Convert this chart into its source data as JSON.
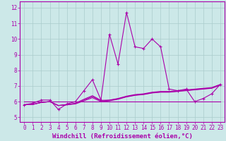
{
  "title": "",
  "xlabel": "Windchill (Refroidissement éolien,°C)",
  "bg_color": "#cce8e8",
  "grid_color": "#aacccc",
  "line_color": "#aa00aa",
  "x_ticks": [
    0,
    1,
    2,
    3,
    4,
    5,
    6,
    7,
    8,
    9,
    10,
    11,
    12,
    13,
    14,
    15,
    16,
    17,
    18,
    19,
    20,
    21,
    22,
    23
  ],
  "ylim": [
    4.7,
    12.4
  ],
  "xlim": [
    -0.5,
    23.5
  ],
  "yticks": [
    5,
    6,
    7,
    8,
    9,
    10,
    11,
    12
  ],
  "lines": [
    {
      "x": [
        0,
        1,
        2,
        3,
        4,
        5,
        6,
        7,
        8,
        9,
        10,
        11,
        12,
        13,
        14,
        15,
        16,
        17,
        18,
        19,
        20,
        21,
        22,
        23
      ],
      "y": [
        5.8,
        5.9,
        6.1,
        6.1,
        5.5,
        5.85,
        6.0,
        6.7,
        7.4,
        6.1,
        10.3,
        8.4,
        11.7,
        9.5,
        9.4,
        10.0,
        9.5,
        6.8,
        6.7,
        6.8,
        6.0,
        6.2,
        6.5,
        7.1
      ],
      "marker": true
    },
    {
      "x": [
        0,
        1,
        2,
        3,
        4,
        5,
        6,
        7,
        8,
        9,
        10,
        11,
        12,
        13,
        14,
        15,
        16,
        17,
        18,
        19,
        20,
        21,
        22,
        23
      ],
      "y": [
        5.8,
        5.82,
        5.95,
        6.0,
        5.75,
        5.8,
        5.85,
        6.05,
        6.25,
        6.0,
        6.05,
        6.15,
        6.3,
        6.4,
        6.45,
        6.55,
        6.6,
        6.6,
        6.65,
        6.7,
        6.75,
        6.8,
        6.85,
        7.05
      ],
      "marker": false
    },
    {
      "x": [
        0,
        1,
        2,
        3,
        4,
        5,
        6,
        7,
        8,
        9,
        10,
        11,
        12,
        13,
        14,
        15,
        16,
        17,
        18,
        19,
        20,
        21,
        22,
        23
      ],
      "y": [
        5.8,
        5.82,
        5.95,
        6.0,
        5.75,
        5.8,
        5.88,
        6.1,
        6.32,
        6.05,
        6.08,
        6.18,
        6.32,
        6.42,
        6.47,
        6.57,
        6.62,
        6.62,
        6.67,
        6.72,
        6.77,
        6.82,
        6.87,
        7.07
      ],
      "marker": false
    },
    {
      "x": [
        0,
        1,
        2,
        3,
        4,
        5,
        6,
        7,
        8,
        9,
        10,
        11,
        12,
        13,
        14,
        15,
        16,
        17,
        18,
        19,
        20,
        21,
        22,
        23
      ],
      "y": [
        5.8,
        5.82,
        5.95,
        6.0,
        5.75,
        5.8,
        5.9,
        6.15,
        6.38,
        6.08,
        6.1,
        6.2,
        6.35,
        6.45,
        6.5,
        6.6,
        6.65,
        6.65,
        6.7,
        6.75,
        6.8,
        6.85,
        6.9,
        7.1
      ],
      "marker": false
    },
    {
      "x": [
        0,
        23
      ],
      "y": [
        6.0,
        6.0
      ],
      "marker": false
    }
  ],
  "fontsize_xlabel": 6.5,
  "tick_fontsize": 5.5
}
